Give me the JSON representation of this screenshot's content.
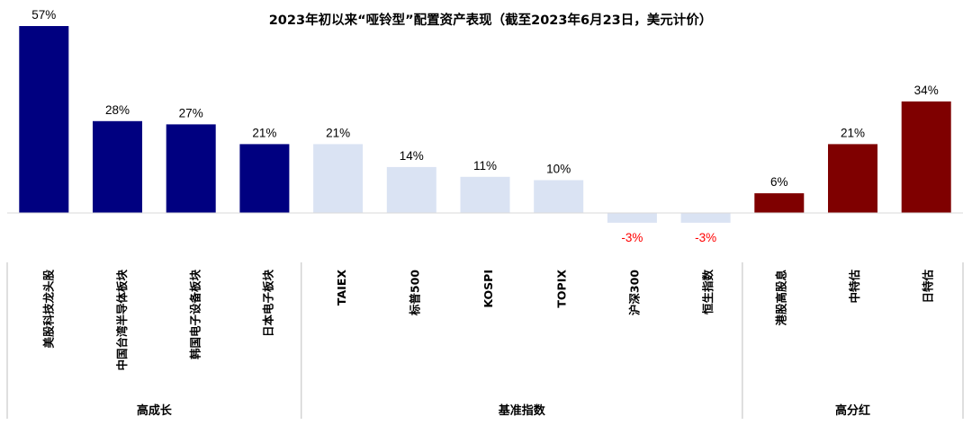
{
  "chart_data": {
    "type": "bar",
    "title": "2023年初以来“哑铃型”配置资产表现（截至2023年6月23日，美元计价）",
    "categories": [
      "美股科技龙头股",
      "中国台湾半导体板块",
      "韩国电子设备板块",
      "日本电子板块",
      "TAIEX",
      "标普500",
      "KOSPI",
      "TOPIX",
      "沪深300",
      "恒生指数",
      "港股高股息",
      "中特估",
      "日特估"
    ],
    "values": [
      57,
      28,
      27,
      21,
      21,
      14,
      11,
      10,
      -3,
      -3,
      6,
      21,
      34
    ],
    "value_labels": [
      "57%",
      "28%",
      "27%",
      "21%",
      "21%",
      "14%",
      "11%",
      "10%",
      "-3%",
      "-3%",
      "6%",
      "21%",
      "34%"
    ],
    "groups": [
      {
        "name": "高成长",
        "count": 4,
        "color": "#000080"
      },
      {
        "name": "基准指数",
        "count": 6,
        "color": "#dae3f3"
      },
      {
        "name": "高分红",
        "count": 3,
        "color": "#7f0000"
      }
    ],
    "label_colors": {
      "positive": "#000000",
      "negative": "#ff0000"
    },
    "ylim": [
      -3,
      57
    ],
    "grid": false,
    "legend": "none"
  }
}
